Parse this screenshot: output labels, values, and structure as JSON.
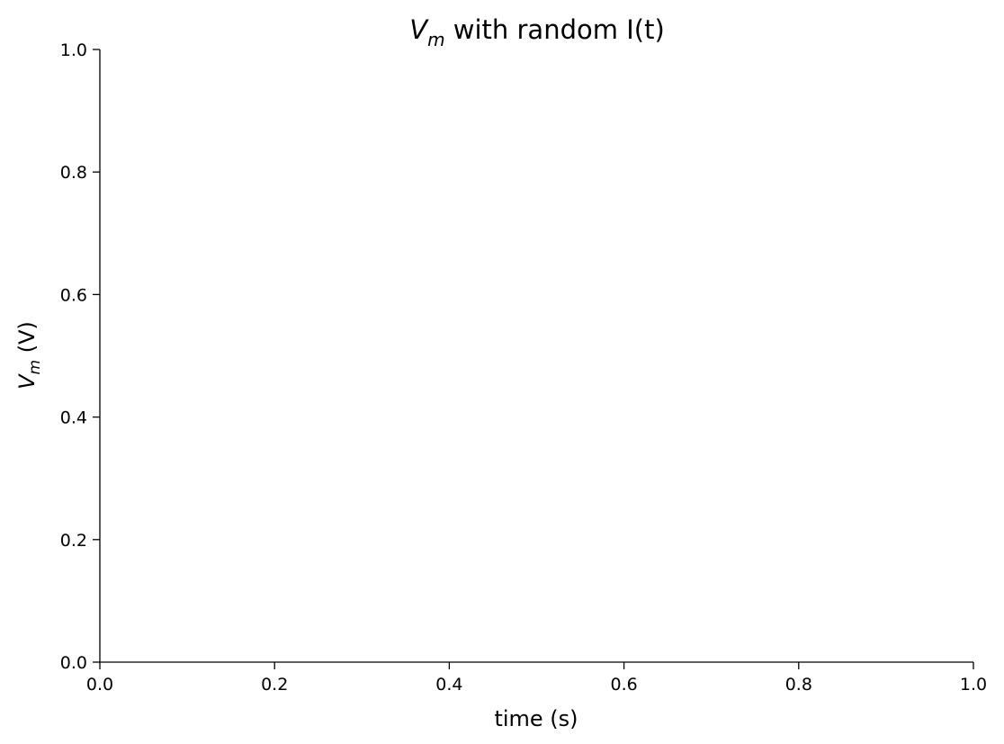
{
  "chart_data": {
    "type": "line",
    "title": {
      "math_symbol": "V",
      "math_subscript": "m",
      "suffix": " with random I(t)"
    },
    "xlabel": "time (s)",
    "ylabel": {
      "math_symbol": "V",
      "math_subscript": "m",
      "suffix": " (V)"
    },
    "xlim": [
      0.0,
      1.0
    ],
    "ylim": [
      0.0,
      1.0
    ],
    "xticks": [
      0.0,
      0.2,
      0.4,
      0.6,
      0.8,
      1.0
    ],
    "xtick_labels": [
      "0.0",
      "0.2",
      "0.4",
      "0.6",
      "0.8",
      "1.0"
    ],
    "yticks": [
      0.0,
      0.2,
      0.4,
      0.6,
      0.8,
      1.0
    ],
    "ytick_labels": [
      "0.0",
      "0.2",
      "0.4",
      "0.6",
      "0.8",
      "1.0"
    ],
    "grid": false,
    "series": []
  }
}
